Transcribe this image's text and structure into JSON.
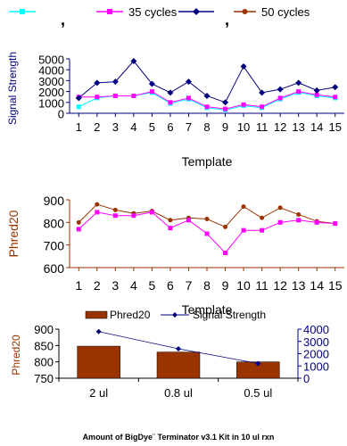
{
  "legend_top": {
    "entries": [
      {
        "label": "",
        "color": "#00FFFF",
        "marker": "square"
      },
      {
        "label": "35 cycles",
        "color": "#FF00FF",
        "marker": "square"
      },
      {
        "label": "",
        "color": "#000080",
        "marker": "diamond"
      },
      {
        "label": "50 cycles",
        "color": "#993300",
        "marker": "circle"
      }
    ],
    "separator": ","
  },
  "chart_data": [
    {
      "type": "line",
      "title": "",
      "xlabel": "Template",
      "ylabel": "Signal Strength",
      "x": [
        1,
        2,
        3,
        4,
        5,
        6,
        7,
        8,
        9,
        10,
        11,
        12,
        13,
        14,
        15
      ],
      "ylim": [
        0,
        5000
      ],
      "yticks": [
        0,
        1000,
        2000,
        3000,
        4000,
        5000
      ],
      "axis_color": "#000080",
      "series": [
        {
          "color": "#00FFFF",
          "marker": "square",
          "values": [
            600,
            1400,
            1600,
            1600,
            1900,
            900,
            1300,
            500,
            300,
            700,
            500,
            1300,
            1900,
            1600,
            1400
          ]
        },
        {
          "name": "35 cycles",
          "color": "#FF00FF",
          "marker": "square",
          "values": [
            1500,
            1500,
            1600,
            1600,
            2000,
            1000,
            1400,
            600,
            400,
            800,
            600,
            1400,
            2000,
            1700,
            1500
          ]
        },
        {
          "color": "#000080",
          "marker": "diamond",
          "values": [
            1400,
            2800,
            2900,
            4800,
            2700,
            1900,
            2900,
            1600,
            1000,
            4300,
            1900,
            2200,
            2800,
            2100,
            2400
          ]
        }
      ]
    },
    {
      "type": "line",
      "title": "",
      "xlabel": "Template",
      "ylabel": "Phred20",
      "x": [
        1,
        2,
        3,
        4,
        5,
        6,
        7,
        8,
        9,
        10,
        11,
        12,
        13,
        14,
        15
      ],
      "ylim": [
        600,
        900
      ],
      "yticks": [
        600,
        700,
        800,
        900
      ],
      "axis_color": "#993300",
      "series": [
        {
          "name": "50 cycles",
          "color": "#993300",
          "marker": "circle",
          "values": [
            800,
            880,
            855,
            840,
            850,
            810,
            820,
            815,
            780,
            870,
            820,
            865,
            835,
            805,
            795
          ]
        },
        {
          "color": "#FF00FF",
          "marker": "square",
          "values": [
            770,
            845,
            830,
            830,
            845,
            775,
            810,
            750,
            665,
            765,
            765,
            800,
            810,
            800,
            795
          ]
        }
      ]
    },
    {
      "type": "bar",
      "title": "",
      "xlabel": "Amount of BigDye¨  Terminator v3.1 Kit in 10 ul rxn",
      "ylabel": "Phred20",
      "categories": [
        "2 ul",
        "0.8 ul",
        "0.5 ul"
      ],
      "ylim": [
        750,
        900
      ],
      "yticks": [
        750,
        800,
        850,
        900
      ],
      "y2lim": [
        0,
        4000
      ],
      "y2ticks": [
        0,
        1000,
        2000,
        3000,
        4000
      ],
      "legend": [
        "Phred20",
        "Signal Strength"
      ],
      "series": [
        {
          "name": "Phred20",
          "type": "bar",
          "axis": "left",
          "color": "#993300",
          "values": [
            848,
            830,
            800
          ]
        },
        {
          "name": "Signal Strength",
          "type": "line",
          "axis": "right",
          "color": "#000080",
          "marker": "diamond",
          "values": [
            3800,
            2400,
            1200
          ]
        }
      ]
    }
  ]
}
